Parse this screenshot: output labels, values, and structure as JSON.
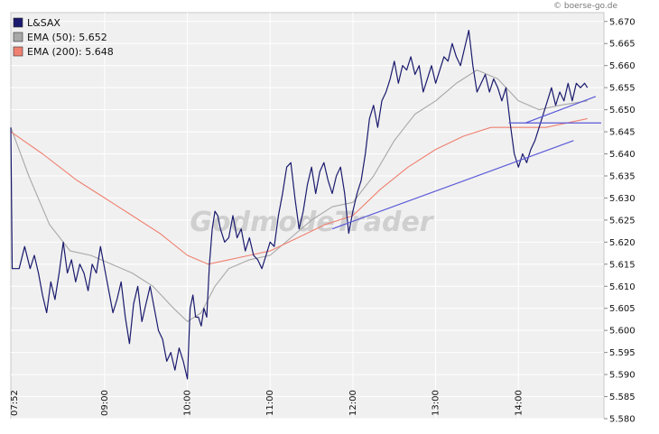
{
  "credit": "© boerse-go.de",
  "watermark": "GodmodeTrader",
  "chart_data": {
    "type": "line",
    "x_axis": {
      "kind": "time",
      "start": "07:52",
      "end": "14:50",
      "ticks": [
        "07:52",
        "09:00",
        "10:00",
        "11:00",
        "12:00",
        "13:00",
        "14:00"
      ]
    },
    "ylim": [
      5.58,
      5.672
    ],
    "y_ticks": [
      "5.670",
      "5.665",
      "5.660",
      "5.655",
      "5.650",
      "5.645",
      "5.640",
      "5.635",
      "5.630",
      "5.625",
      "5.620",
      "5.615",
      "5.610",
      "5.605",
      "5.600",
      "5.595",
      "5.590",
      "5.585",
      "5.580"
    ],
    "grid": true,
    "legend_position": "top-left",
    "series": [
      {
        "name": "L&SAX",
        "color": "#1a1a6e",
        "points": [
          [
            "07:52",
            5.646
          ],
          [
            "07:53",
            5.614
          ],
          [
            "07:58",
            5.614
          ],
          [
            "08:02",
            5.619
          ],
          [
            "08:06",
            5.614
          ],
          [
            "08:09",
            5.617
          ],
          [
            "08:12",
            5.613
          ],
          [
            "08:15",
            5.608
          ],
          [
            "08:18",
            5.604
          ],
          [
            "08:21",
            5.611
          ],
          [
            "08:24",
            5.607
          ],
          [
            "08:27",
            5.613
          ],
          [
            "08:30",
            5.62
          ],
          [
            "08:33",
            5.613
          ],
          [
            "08:36",
            5.616
          ],
          [
            "08:39",
            5.611
          ],
          [
            "08:42",
            5.615
          ],
          [
            "08:45",
            5.613
          ],
          [
            "08:48",
            5.609
          ],
          [
            "08:51",
            5.615
          ],
          [
            "08:54",
            5.613
          ],
          [
            "08:57",
            5.619
          ],
          [
            "09:00",
            5.614
          ],
          [
            "09:03",
            5.609
          ],
          [
            "09:06",
            5.604
          ],
          [
            "09:09",
            5.607
          ],
          [
            "09:12",
            5.611
          ],
          [
            "09:15",
            5.603
          ],
          [
            "09:18",
            5.597
          ],
          [
            "09:21",
            5.606
          ],
          [
            "09:24",
            5.61
          ],
          [
            "09:27",
            5.602
          ],
          [
            "09:30",
            5.606
          ],
          [
            "09:33",
            5.61
          ],
          [
            "09:36",
            5.605
          ],
          [
            "09:39",
            5.6
          ],
          [
            "09:42",
            5.598
          ],
          [
            "09:45",
            5.593
          ],
          [
            "09:48",
            5.595
          ],
          [
            "09:51",
            5.591
          ],
          [
            "09:54",
            5.596
          ],
          [
            "09:57",
            5.593
          ],
          [
            "10:00",
            5.589
          ],
          [
            "10:02",
            5.605
          ],
          [
            "10:04",
            5.608
          ],
          [
            "10:06",
            5.603
          ],
          [
            "10:08",
            5.603
          ],
          [
            "10:10",
            5.601
          ],
          [
            "10:12",
            5.605
          ],
          [
            "10:14",
            5.603
          ],
          [
            "10:16",
            5.615
          ],
          [
            "10:18",
            5.623
          ],
          [
            "10:20",
            5.627
          ],
          [
            "10:22",
            5.626
          ],
          [
            "10:24",
            5.623
          ],
          [
            "10:27",
            5.62
          ],
          [
            "10:30",
            5.621
          ],
          [
            "10:33",
            5.626
          ],
          [
            "10:36",
            5.621
          ],
          [
            "10:39",
            5.623
          ],
          [
            "10:42",
            5.618
          ],
          [
            "10:45",
            5.621
          ],
          [
            "10:48",
            5.617
          ],
          [
            "10:51",
            5.616
          ],
          [
            "10:54",
            5.614
          ],
          [
            "10:57",
            5.617
          ],
          [
            "11:00",
            5.62
          ],
          [
            "11:03",
            5.619
          ],
          [
            "11:06",
            5.626
          ],
          [
            "11:09",
            5.631
          ],
          [
            "11:12",
            5.637
          ],
          [
            "11:15",
            5.638
          ],
          [
            "11:18",
            5.63
          ],
          [
            "11:21",
            5.623
          ],
          [
            "11:24",
            5.627
          ],
          [
            "11:27",
            5.633
          ],
          [
            "11:30",
            5.637
          ],
          [
            "11:33",
            5.631
          ],
          [
            "11:36",
            5.636
          ],
          [
            "11:39",
            5.638
          ],
          [
            "11:42",
            5.634
          ],
          [
            "11:45",
            5.631
          ],
          [
            "11:48",
            5.635
          ],
          [
            "11:51",
            5.637
          ],
          [
            "11:54",
            5.631
          ],
          [
            "11:57",
            5.622
          ],
          [
            "12:00",
            5.627
          ],
          [
            "12:03",
            5.631
          ],
          [
            "12:06",
            5.634
          ],
          [
            "12:09",
            5.64
          ],
          [
            "12:12",
            5.648
          ],
          [
            "12:15",
            5.651
          ],
          [
            "12:18",
            5.646
          ],
          [
            "12:21",
            5.652
          ],
          [
            "12:24",
            5.654
          ],
          [
            "12:27",
            5.657
          ],
          [
            "12:30",
            5.661
          ],
          [
            "12:33",
            5.656
          ],
          [
            "12:36",
            5.66
          ],
          [
            "12:39",
            5.659
          ],
          [
            "12:42",
            5.662
          ],
          [
            "12:45",
            5.658
          ],
          [
            "12:48",
            5.66
          ],
          [
            "12:51",
            5.654
          ],
          [
            "12:54",
            5.657
          ],
          [
            "12:57",
            5.66
          ],
          [
            "13:00",
            5.656
          ],
          [
            "13:03",
            5.659
          ],
          [
            "13:06",
            5.662
          ],
          [
            "13:09",
            5.661
          ],
          [
            "13:12",
            5.665
          ],
          [
            "13:15",
            5.662
          ],
          [
            "13:18",
            5.66
          ],
          [
            "13:21",
            5.664
          ],
          [
            "13:24",
            5.668
          ],
          [
            "13:27",
            5.66
          ],
          [
            "13:30",
            5.654
          ],
          [
            "13:33",
            5.656
          ],
          [
            "13:36",
            5.658
          ],
          [
            "13:39",
            5.654
          ],
          [
            "13:42",
            5.657
          ],
          [
            "13:45",
            5.655
          ],
          [
            "13:48",
            5.652
          ],
          [
            "13:51",
            5.655
          ],
          [
            "13:54",
            5.647
          ],
          [
            "13:57",
            5.64
          ],
          [
            "14:00",
            5.637
          ],
          [
            "14:03",
            5.64
          ],
          [
            "14:06",
            5.638
          ],
          [
            "14:09",
            5.641
          ],
          [
            "14:12",
            5.643
          ],
          [
            "14:15",
            5.646
          ],
          [
            "14:18",
            5.649
          ],
          [
            "14:21",
            5.652
          ],
          [
            "14:24",
            5.655
          ],
          [
            "14:27",
            5.651
          ],
          [
            "14:30",
            5.654
          ],
          [
            "14:33",
            5.652
          ],
          [
            "14:36",
            5.656
          ],
          [
            "14:39",
            5.652
          ],
          [
            "14:42",
            5.656
          ],
          [
            "14:45",
            5.655
          ],
          [
            "14:48",
            5.656
          ],
          [
            "14:50",
            5.655
          ]
        ]
      },
      {
        "name": "EMA (50)",
        "value_label": "5.652",
        "color": "#a8a8a8",
        "points": [
          [
            "07:52",
            5.646
          ],
          [
            "08:05",
            5.635
          ],
          [
            "08:20",
            5.624
          ],
          [
            "08:35",
            5.618
          ],
          [
            "08:50",
            5.617
          ],
          [
            "09:05",
            5.615
          ],
          [
            "09:20",
            5.613
          ],
          [
            "09:35",
            5.61
          ],
          [
            "09:50",
            5.605
          ],
          [
            "10:00",
            5.602
          ],
          [
            "10:10",
            5.604
          ],
          [
            "10:20",
            5.61
          ],
          [
            "10:30",
            5.614
          ],
          [
            "10:45",
            5.616
          ],
          [
            "11:00",
            5.617
          ],
          [
            "11:15",
            5.621
          ],
          [
            "11:30",
            5.625
          ],
          [
            "11:45",
            5.628
          ],
          [
            "12:00",
            5.629
          ],
          [
            "12:15",
            5.635
          ],
          [
            "12:30",
            5.643
          ],
          [
            "12:45",
            5.649
          ],
          [
            "13:00",
            5.652
          ],
          [
            "13:15",
            5.656
          ],
          [
            "13:30",
            5.659
          ],
          [
            "13:45",
            5.657
          ],
          [
            "14:00",
            5.652
          ],
          [
            "14:15",
            5.65
          ],
          [
            "14:30",
            5.651
          ],
          [
            "14:50",
            5.652
          ]
        ]
      },
      {
        "name": "EMA (200)",
        "value_label": "5.648",
        "color": "#f08070",
        "points": [
          [
            "07:52",
            5.645
          ],
          [
            "08:15",
            5.64
          ],
          [
            "08:40",
            5.634
          ],
          [
            "09:00",
            5.63
          ],
          [
            "09:20",
            5.626
          ],
          [
            "09:40",
            5.622
          ],
          [
            "10:00",
            5.617
          ],
          [
            "10:15",
            5.615
          ],
          [
            "10:30",
            5.616
          ],
          [
            "10:45",
            5.617
          ],
          [
            "11:00",
            5.618
          ],
          [
            "11:20",
            5.621
          ],
          [
            "11:40",
            5.624
          ],
          [
            "12:00",
            5.626
          ],
          [
            "12:20",
            5.632
          ],
          [
            "12:40",
            5.637
          ],
          [
            "13:00",
            5.641
          ],
          [
            "13:20",
            5.644
          ],
          [
            "13:40",
            5.646
          ],
          [
            "14:00",
            5.646
          ],
          [
            "14:20",
            5.646
          ],
          [
            "14:50",
            5.648
          ]
        ]
      }
    ],
    "annotations": [
      {
        "kind": "trendline",
        "color": "#5a5ad8",
        "from": [
          "11:45",
          5.623
        ],
        "to": [
          "14:40",
          5.643
        ]
      },
      {
        "kind": "trendline",
        "color": "#5a5ad8",
        "from": [
          "14:05",
          5.647
        ],
        "to": [
          "14:56",
          5.653
        ]
      },
      {
        "kind": "hline",
        "color": "#5a5ad8",
        "from": [
          "13:53",
          5.647
        ],
        "to": [
          "15:00",
          5.647
        ]
      }
    ]
  }
}
